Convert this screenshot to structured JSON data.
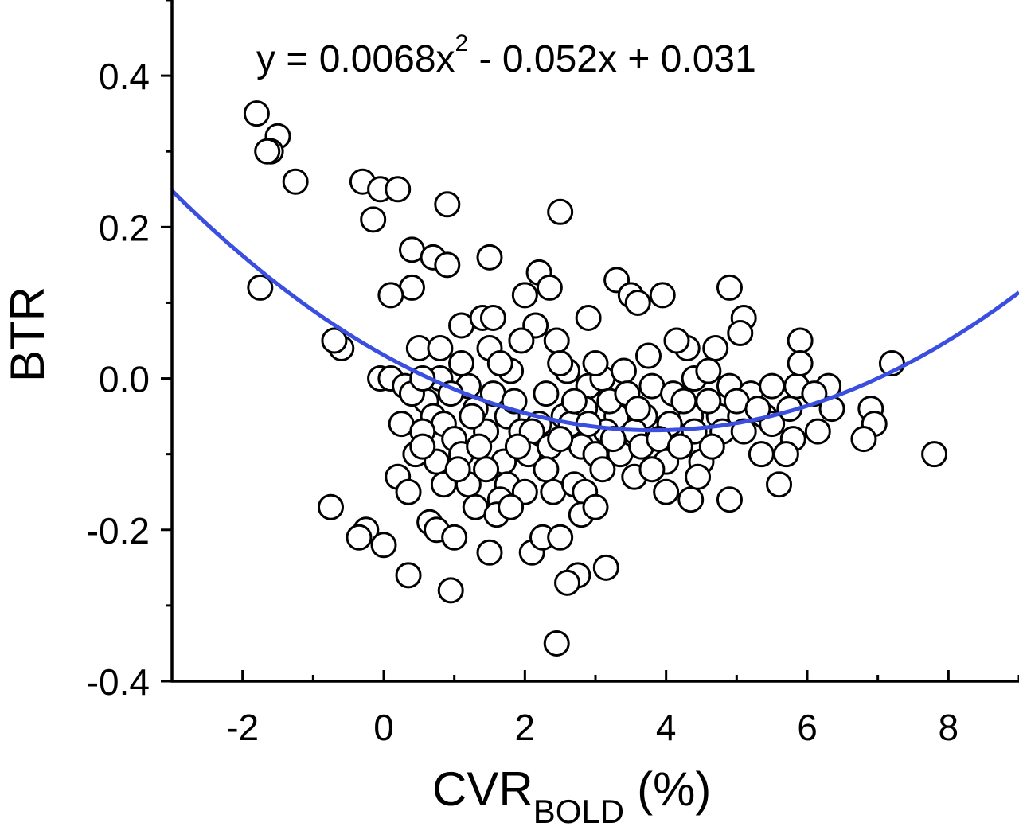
{
  "chart_data": {
    "type": "scatter",
    "title": "",
    "ylabel": "BTR",
    "xlabel": {
      "main": "CVR",
      "subscript": "BOLD",
      "unit": "(%)"
    },
    "equation": {
      "prefix": "y = 0.0068x",
      "exponent": "2",
      "suffix": " - 0.052x + 0.031"
    },
    "xlim": [
      -3,
      9
    ],
    "ylim": [
      -0.4,
      0.5
    ],
    "x_ticks": [
      -2,
      0,
      2,
      4,
      6,
      8
    ],
    "x_tick_labels": [
      "-2",
      "0",
      "2",
      "4",
      "6",
      "8"
    ],
    "y_ticks": [
      -0.4,
      -0.2,
      0.0,
      0.2,
      0.4
    ],
    "y_tick_labels": [
      "-0.4",
      "-0.2",
      "0.0",
      "0.2",
      "0.4"
    ],
    "grid": false,
    "fit": {
      "type": "quadratic",
      "coefficients": {
        "a": 0.0068,
        "b": -0.052,
        "c": 0.031
      },
      "color": "#3a4ee0"
    },
    "marker": {
      "shape": "open-circle",
      "stroke": "#000000",
      "fill": "#ffffff"
    },
    "points": [
      [
        -1.8,
        0.35
      ],
      [
        -1.5,
        0.32
      ],
      [
        -1.6,
        0.3
      ],
      [
        -1.65,
        0.3
      ],
      [
        -1.25,
        0.26
      ],
      [
        -1.75,
        0.12
      ],
      [
        -0.3,
        0.26
      ],
      [
        -0.05,
        0.25
      ],
      [
        0.2,
        0.25
      ],
      [
        -0.15,
        0.21
      ],
      [
        0.9,
        0.23
      ],
      [
        2.5,
        0.22
      ],
      [
        0.4,
        0.17
      ],
      [
        0.7,
        0.16
      ],
      [
        0.9,
        0.15
      ],
      [
        1.5,
        0.16
      ],
      [
        2.2,
        0.14
      ],
      [
        2.35,
        0.12
      ],
      [
        0.4,
        0.12
      ],
      [
        0.1,
        0.11
      ],
      [
        2.0,
        0.11
      ],
      [
        3.3,
        0.13
      ],
      [
        3.5,
        0.11
      ],
      [
        3.6,
        0.1
      ],
      [
        3.95,
        0.11
      ],
      [
        4.9,
        0.12
      ],
      [
        -0.6,
        0.04
      ],
      [
        -0.7,
        0.05
      ],
      [
        1.1,
        0.07
      ],
      [
        1.4,
        0.08
      ],
      [
        1.55,
        0.08
      ],
      [
        2.15,
        0.07
      ],
      [
        2.9,
        0.08
      ],
      [
        5.1,
        0.08
      ],
      [
        5.05,
        0.06
      ],
      [
        0.5,
        0.04
      ],
      [
        0.8,
        0.04
      ],
      [
        1.5,
        0.04
      ],
      [
        2.45,
        0.05
      ],
      [
        4.3,
        0.04
      ],
      [
        4.7,
        0.04
      ],
      [
        5.9,
        0.05
      ],
      [
        3.75,
        0.03
      ],
      [
        4.15,
        0.05
      ],
      [
        1.95,
        0.05
      ],
      [
        -0.05,
        0.0
      ],
      [
        0.1,
        0.0
      ],
      [
        0.3,
        -0.01
      ],
      [
        0.8,
        0.0
      ],
      [
        0.6,
        -0.03
      ],
      [
        1.2,
        -0.01
      ],
      [
        1.8,
        0.01
      ],
      [
        2.6,
        0.01
      ],
      [
        2.9,
        -0.01
      ],
      [
        3.1,
        0.0
      ],
      [
        3.4,
        0.01
      ],
      [
        3.8,
        -0.01
      ],
      [
        4.1,
        -0.02
      ],
      [
        4.4,
        0.0
      ],
      [
        4.6,
        0.01
      ],
      [
        4.9,
        -0.01
      ],
      [
        5.2,
        -0.02
      ],
      [
        5.5,
        -0.01
      ],
      [
        5.85,
        -0.01
      ],
      [
        6.3,
        -0.01
      ],
      [
        7.2,
        0.02
      ],
      [
        5.9,
        0.02
      ],
      [
        1.1,
        0.02
      ],
      [
        1.65,
        0.02
      ],
      [
        2.5,
        0.02
      ],
      [
        3.0,
        0.02
      ],
      [
        0.4,
        -0.02
      ],
      [
        0.7,
        -0.05
      ],
      [
        0.85,
        -0.06
      ],
      [
        1.3,
        -0.04
      ],
      [
        1.75,
        -0.05
      ],
      [
        2.2,
        -0.06
      ],
      [
        2.55,
        -0.05
      ],
      [
        2.85,
        -0.04
      ],
      [
        3.3,
        -0.05
      ],
      [
        3.7,
        -0.05
      ],
      [
        4.35,
        -0.05
      ],
      [
        4.75,
        -0.05
      ],
      [
        5.05,
        -0.05
      ],
      [
        5.4,
        -0.05
      ],
      [
        5.75,
        -0.04
      ],
      [
        6.1,
        -0.02
      ],
      [
        6.35,
        -0.04
      ],
      [
        6.9,
        -0.04
      ],
      [
        6.95,
        -0.06
      ],
      [
        6.8,
        -0.08
      ],
      [
        7.8,
        -0.1
      ],
      [
        6.15,
        -0.07
      ],
      [
        5.8,
        -0.08
      ],
      [
        5.5,
        -0.06
      ],
      [
        0.25,
        -0.06
      ],
      [
        0.55,
        -0.07
      ],
      [
        1.0,
        -0.08
      ],
      [
        1.45,
        -0.07
      ],
      [
        1.95,
        -0.07
      ],
      [
        2.1,
        -0.07
      ],
      [
        2.65,
        -0.06
      ],
      [
        3.15,
        -0.07
      ],
      [
        3.55,
        -0.07
      ],
      [
        4.05,
        -0.06
      ],
      [
        4.4,
        -0.07
      ],
      [
        4.8,
        -0.07
      ],
      [
        5.1,
        -0.07
      ],
      [
        0.45,
        -0.1
      ],
      [
        0.75,
        -0.11
      ],
      [
        1.1,
        -0.1
      ],
      [
        1.35,
        -0.09
      ],
      [
        1.7,
        -0.11
      ],
      [
        2.05,
        -0.1
      ],
      [
        2.35,
        -0.09
      ],
      [
        2.8,
        -0.09
      ],
      [
        3.0,
        -0.1
      ],
      [
        3.35,
        -0.1
      ],
      [
        3.65,
        -0.09
      ],
      [
        4.0,
        -0.11
      ],
      [
        4.5,
        -0.11
      ],
      [
        5.35,
        -0.1
      ],
      [
        5.7,
        -0.1
      ],
      [
        0.2,
        -0.13
      ],
      [
        0.35,
        -0.15
      ],
      [
        0.85,
        -0.14
      ],
      [
        1.2,
        -0.14
      ],
      [
        1.45,
        -0.12
      ],
      [
        1.75,
        -0.14
      ],
      [
        1.65,
        -0.16
      ],
      [
        2.0,
        -0.15
      ],
      [
        2.4,
        -0.15
      ],
      [
        2.7,
        -0.14
      ],
      [
        2.85,
        -0.15
      ],
      [
        3.1,
        -0.12
      ],
      [
        3.55,
        -0.13
      ],
      [
        4.0,
        -0.15
      ],
      [
        4.35,
        -0.16
      ],
      [
        4.45,
        -0.13
      ],
      [
        4.9,
        -0.16
      ],
      [
        5.6,
        -0.14
      ],
      [
        1.3,
        -0.17
      ],
      [
        1.6,
        -0.18
      ],
      [
        1.8,
        -0.17
      ],
      [
        2.8,
        -0.18
      ],
      [
        3.0,
        -0.17
      ],
      [
        -0.75,
        -0.17
      ],
      [
        -0.25,
        -0.2
      ],
      [
        -0.35,
        -0.21
      ],
      [
        0.0,
        -0.22
      ],
      [
        0.65,
        -0.19
      ],
      [
        0.75,
        -0.2
      ],
      [
        1.0,
        -0.21
      ],
      [
        1.5,
        -0.23
      ],
      [
        2.1,
        -0.23
      ],
      [
        2.25,
        -0.21
      ],
      [
        2.5,
        -0.21
      ],
      [
        0.35,
        -0.26
      ],
      [
        0.95,
        -0.28
      ],
      [
        2.75,
        -0.26
      ],
      [
        2.6,
        -0.27
      ],
      [
        3.15,
        -0.25
      ],
      [
        2.45,
        -0.35
      ],
      [
        0.55,
        0.0
      ],
      [
        0.95,
        -0.02
      ],
      [
        1.25,
        -0.05
      ],
      [
        1.55,
        -0.02
      ],
      [
        1.85,
        -0.03
      ],
      [
        2.3,
        -0.02
      ],
      [
        2.7,
        -0.03
      ],
      [
        3.2,
        -0.03
      ],
      [
        3.45,
        -0.02
      ],
      [
        4.25,
        -0.03
      ],
      [
        4.6,
        -0.03
      ],
      [
        5.0,
        -0.03
      ],
      [
        5.3,
        -0.04
      ],
      [
        3.9,
        -0.08
      ],
      [
        3.25,
        -0.08
      ],
      [
        2.5,
        -0.08
      ],
      [
        1.9,
        -0.09
      ],
      [
        0.55,
        -0.09
      ],
      [
        4.65,
        -0.09
      ],
      [
        2.9,
        -0.06
      ],
      [
        3.6,
        -0.04
      ],
      [
        4.2,
        -0.09
      ],
      [
        1.05,
        -0.12
      ],
      [
        2.3,
        -0.12
      ],
      [
        3.8,
        -0.12
      ]
    ]
  }
}
